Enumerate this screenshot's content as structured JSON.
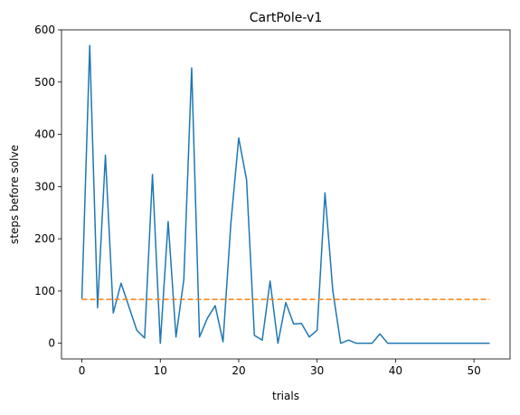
{
  "chart_data": {
    "type": "line",
    "title": "CartPole-v1",
    "xlabel": "trials",
    "ylabel": "steps before solve",
    "xlim": [
      -2.6,
      54.6
    ],
    "ylim": [
      -30,
      600
    ],
    "x_ticks": [
      0,
      10,
      20,
      30,
      40,
      50
    ],
    "y_ticks": [
      0,
      100,
      200,
      300,
      400,
      500,
      600
    ],
    "grid": false,
    "legend": "none",
    "series": [
      {
        "color": "#1f77b4",
        "style": "solid",
        "x": [
          0,
          1,
          2,
          3,
          4,
          5,
          6,
          7,
          8,
          9,
          10,
          11,
          12,
          13,
          14,
          15,
          16,
          17,
          18,
          19,
          20,
          21,
          22,
          23,
          24,
          25,
          26,
          27,
          28,
          29,
          30,
          31,
          32,
          33,
          34,
          35,
          36,
          37,
          38,
          39,
          40,
          41,
          42,
          43,
          44,
          45,
          46,
          47,
          48,
          49,
          50,
          51,
          52
        ],
        "values": [
          85,
          570,
          68,
          360,
          58,
          115,
          70,
          25,
          10,
          323,
          0,
          233,
          12,
          122,
          527,
          12,
          48,
          72,
          3,
          230,
          393,
          313,
          15,
          6,
          119,
          0,
          78,
          37,
          38,
          12,
          25,
          288,
          100,
          0,
          6,
          0,
          0,
          0,
          18,
          0,
          0,
          0,
          0,
          0,
          0,
          0,
          0,
          0,
          0,
          0,
          0,
          0,
          0
        ]
      },
      {
        "color": "#ff7f0e",
        "style": "dashed",
        "x": [
          0,
          52
        ],
        "values": [
          84,
          84
        ]
      }
    ]
  }
}
